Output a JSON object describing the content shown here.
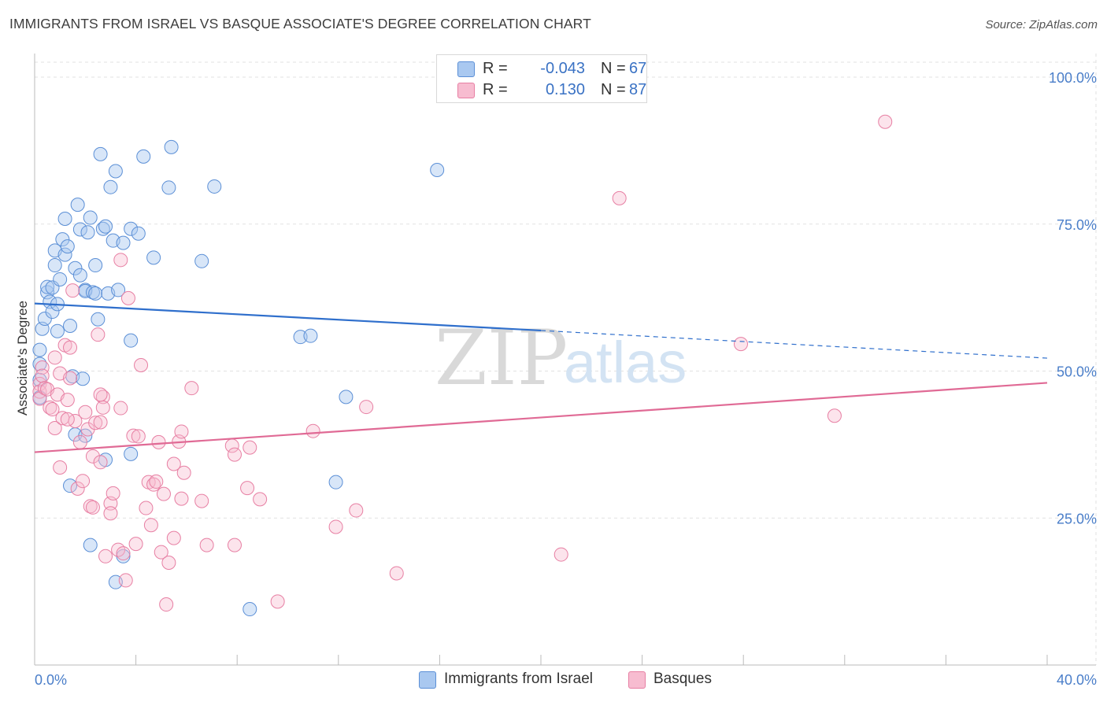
{
  "title": "IMMIGRANTS FROM ISRAEL VS BASQUE ASSOCIATE'S DEGREE CORRELATION CHART",
  "source": "Source: ZipAtlas.com",
  "watermark": {
    "zip": "ZIP",
    "atlas": "atlas"
  },
  "legend": {
    "rows": [
      {
        "r_label": "R =",
        "r_value": "-0.043",
        "n_label": "N =",
        "n_value": "67",
        "color": "#a9c8f0",
        "stroke": "#5b8fd6"
      },
      {
        "r_label": "R =",
        "r_value": "0.130",
        "n_label": "N =",
        "n_value": "87",
        "color": "#f7bcd0",
        "stroke": "#e77fa3"
      }
    ]
  },
  "bottom_legend": [
    {
      "label": "Immigrants from Israel",
      "color": "#a9c8f0",
      "stroke": "#5b8fd6"
    },
    {
      "label": "Basques",
      "color": "#f7bcd0",
      "stroke": "#e77fa3"
    }
  ],
  "chart_data": {
    "type": "scatter",
    "xlabel": "",
    "ylabel": "Associate's Degree",
    "xlim": [
      0,
      40
    ],
    "ylim": [
      0,
      105
    ],
    "x_tick_labels": [
      "0.0%",
      "40.0%"
    ],
    "y_ticks": [
      25,
      50,
      75,
      100
    ],
    "y_tick_labels": [
      "25.0%",
      "50.0%",
      "75.0%",
      "100.0%"
    ],
    "grid": true,
    "series": [
      {
        "name": "Immigrants from Israel",
        "color": "#5b8fd6",
        "fill": "rgba(169,200,240,0.45)",
        "trend": {
          "x0": 0,
          "y0": 61.5,
          "x1": 20,
          "y1": 56.9,
          "x_dash_end": 40,
          "y_dash_end": 52.2,
          "color": "#2f6fcc"
        },
        "points": [
          [
            0.2,
            53.6
          ],
          [
            0.2,
            51.2
          ],
          [
            0.2,
            48.5
          ],
          [
            0.2,
            45.5
          ],
          [
            0.3,
            57.2
          ],
          [
            0.4,
            58.9
          ],
          [
            0.5,
            63.4
          ],
          [
            0.5,
            64.3
          ],
          [
            0.6,
            61.8
          ],
          [
            0.7,
            64.2
          ],
          [
            0.7,
            60.1
          ],
          [
            0.8,
            68.0
          ],
          [
            0.8,
            70.5
          ],
          [
            0.9,
            61.4
          ],
          [
            0.9,
            56.8
          ],
          [
            1.0,
            65.6
          ],
          [
            1.1,
            72.4
          ],
          [
            1.2,
            69.8
          ],
          [
            1.2,
            75.9
          ],
          [
            1.3,
            71.2
          ],
          [
            1.4,
            57.7
          ],
          [
            1.5,
            49.1
          ],
          [
            1.6,
            67.5
          ],
          [
            1.7,
            78.3
          ],
          [
            1.8,
            66.3
          ],
          [
            1.8,
            74.1
          ],
          [
            1.9,
            48.7
          ],
          [
            2.0,
            63.8
          ],
          [
            2.0,
            63.6
          ],
          [
            2.1,
            73.6
          ],
          [
            2.2,
            76.1
          ],
          [
            2.3,
            63.4
          ],
          [
            2.4,
            68.0
          ],
          [
            2.4,
            63.2
          ],
          [
            2.5,
            58.8
          ],
          [
            2.6,
            86.9
          ],
          [
            2.7,
            74.2
          ],
          [
            2.8,
            74.6
          ],
          [
            2.9,
            63.2
          ],
          [
            3.0,
            81.3
          ],
          [
            3.1,
            72.2
          ],
          [
            3.2,
            84.0
          ],
          [
            3.3,
            63.8
          ],
          [
            3.5,
            71.8
          ],
          [
            3.8,
            74.2
          ],
          [
            4.1,
            73.4
          ],
          [
            4.3,
            86.5
          ],
          [
            4.7,
            69.3
          ],
          [
            5.3,
            81.2
          ],
          [
            5.4,
            88.1
          ],
          [
            6.6,
            68.7
          ],
          [
            7.1,
            81.4
          ],
          [
            1.4,
            30.5
          ],
          [
            1.6,
            39.2
          ],
          [
            2.2,
            20.4
          ],
          [
            2.8,
            34.9
          ],
          [
            3.2,
            14.1
          ],
          [
            3.5,
            18.5
          ],
          [
            3.8,
            35.9
          ],
          [
            3.8,
            55.2
          ],
          [
            10.5,
            55.8
          ],
          [
            10.9,
            56.0
          ],
          [
            11.9,
            31.1
          ],
          [
            12.3,
            45.6
          ],
          [
            15.9,
            84.2
          ],
          [
            8.5,
            9.5
          ],
          [
            2.0,
            39.0
          ]
        ]
      },
      {
        "name": "Basques",
        "color": "#e77fa3",
        "fill": "rgba(247,188,208,0.4)",
        "trend": {
          "x0": 0,
          "y0": 36.2,
          "x1": 40,
          "y1": 48.0,
          "color": "#e06a95"
        },
        "points": [
          [
            0.2,
            47.8
          ],
          [
            0.2,
            46.5
          ],
          [
            0.2,
            45.3
          ],
          [
            0.3,
            50.6
          ],
          [
            0.3,
            49.2
          ],
          [
            0.4,
            47.1
          ],
          [
            0.5,
            46.9
          ],
          [
            0.6,
            43.8
          ],
          [
            0.7,
            43.5
          ],
          [
            0.8,
            52.3
          ],
          [
            0.8,
            40.3
          ],
          [
            0.9,
            46.0
          ],
          [
            1.0,
            49.6
          ],
          [
            1.1,
            42.0
          ],
          [
            1.2,
            54.4
          ],
          [
            1.3,
            45.1
          ],
          [
            1.4,
            48.8
          ],
          [
            1.4,
            54.0
          ],
          [
            1.5,
            63.7
          ],
          [
            1.6,
            41.5
          ],
          [
            1.7,
            30.0
          ],
          [
            1.8,
            37.9
          ],
          [
            1.9,
            31.3
          ],
          [
            2.0,
            43.0
          ],
          [
            2.1,
            40.1
          ],
          [
            2.2,
            27.0
          ],
          [
            2.3,
            26.8
          ],
          [
            2.3,
            35.5
          ],
          [
            2.4,
            41.2
          ],
          [
            2.5,
            56.2
          ],
          [
            2.6,
            34.5
          ],
          [
            2.6,
            41.3
          ],
          [
            2.7,
            45.6
          ],
          [
            2.7,
            43.8
          ],
          [
            2.8,
            18.5
          ],
          [
            3.0,
            27.5
          ],
          [
            3.0,
            25.8
          ],
          [
            3.1,
            29.2
          ],
          [
            3.3,
            19.6
          ],
          [
            3.4,
            43.7
          ],
          [
            3.4,
            68.9
          ],
          [
            3.5,
            19.0
          ],
          [
            3.6,
            14.4
          ],
          [
            3.7,
            62.4
          ],
          [
            3.9,
            39.0
          ],
          [
            4.0,
            20.6
          ],
          [
            4.1,
            38.9
          ],
          [
            4.2,
            51.0
          ],
          [
            4.4,
            26.7
          ],
          [
            4.5,
            31.1
          ],
          [
            4.6,
            23.8
          ],
          [
            4.7,
            30.7
          ],
          [
            4.8,
            31.2
          ],
          [
            4.9,
            37.9
          ],
          [
            5.0,
            19.2
          ],
          [
            5.1,
            29.1
          ],
          [
            5.2,
            10.3
          ],
          [
            5.3,
            17.4
          ],
          [
            5.5,
            21.6
          ],
          [
            5.5,
            34.2
          ],
          [
            5.7,
            38.0
          ],
          [
            5.8,
            28.3
          ],
          [
            5.9,
            32.7
          ],
          [
            5.8,
            39.7
          ],
          [
            6.2,
            47.1
          ],
          [
            6.6,
            27.9
          ],
          [
            6.8,
            20.4
          ],
          [
            7.8,
            37.3
          ],
          [
            7.9,
            35.8
          ],
          [
            7.9,
            20.4
          ],
          [
            8.4,
            30.1
          ],
          [
            8.5,
            37.0
          ],
          [
            8.9,
            28.2
          ],
          [
            9.6,
            10.8
          ],
          [
            11.0,
            39.8
          ],
          [
            11.9,
            23.5
          ],
          [
            12.7,
            26.3
          ],
          [
            13.1,
            43.9
          ],
          [
            14.3,
            15.6
          ],
          [
            20.8,
            18.8
          ],
          [
            23.1,
            79.4
          ],
          [
            27.9,
            54.6
          ],
          [
            31.6,
            42.4
          ],
          [
            33.6,
            92.4
          ],
          [
            2.6,
            46.0
          ],
          [
            1.3,
            41.8
          ],
          [
            1.0,
            33.6
          ]
        ]
      }
    ]
  }
}
